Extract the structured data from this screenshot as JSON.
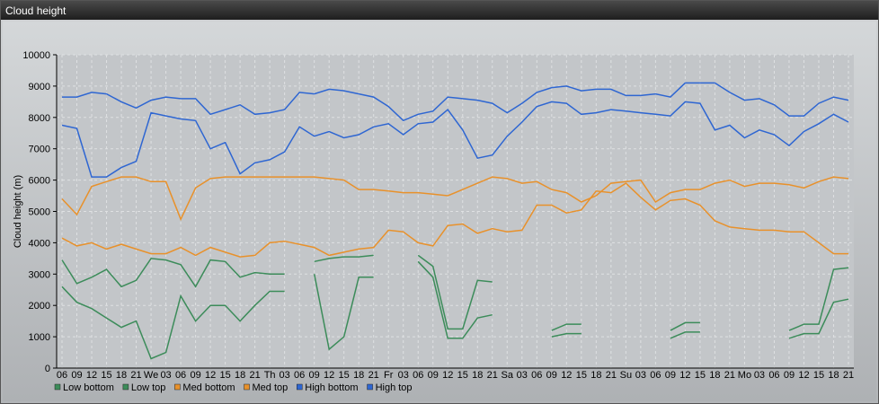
{
  "window": {
    "title": "Cloud height"
  },
  "chart_data": {
    "type": "line",
    "title": "",
    "xlabel": "",
    "ylabel": "Cloud height (m)",
    "ylim": [
      0,
      10000
    ],
    "yticks": [
      0,
      1000,
      2000,
      3000,
      4000,
      5000,
      6000,
      7000,
      8000,
      9000,
      10000
    ],
    "grid": true,
    "legend_position": "bottom",
    "x_tick_labels": [
      "06",
      "09",
      "12",
      "15",
      "18",
      "21",
      "We",
      "03",
      "06",
      "09",
      "12",
      "15",
      "18",
      "21",
      "Th",
      "03",
      "06",
      "09",
      "12",
      "15",
      "18",
      "21",
      "Fr",
      "03",
      "06",
      "09",
      "12",
      "15",
      "18",
      "21",
      "Sa",
      "03",
      "06",
      "09",
      "12",
      "15",
      "18",
      "21",
      "Su",
      "03",
      "06",
      "09",
      "12",
      "15",
      "18",
      "21",
      "Mo",
      "03",
      "06",
      "09",
      "12",
      "15",
      "18",
      "21"
    ],
    "series": [
      {
        "name": "Low bottom",
        "color": "#3c8c5a",
        "values": [
          2600,
          2100,
          1900,
          1600,
          1300,
          1500,
          300,
          500,
          2300,
          1500,
          2000,
          2000,
          1500,
          2000,
          2450,
          2450,
          null,
          3000,
          600,
          1000,
          2900,
          2900,
          null,
          null,
          3400,
          2900,
          950,
          950,
          1600,
          1700,
          null,
          null,
          null,
          1000,
          1100,
          1100,
          null,
          null,
          null,
          null,
          null,
          950,
          1150,
          1150,
          null,
          null,
          null,
          null,
          null,
          950,
          1100,
          1100,
          2100,
          2200
        ]
      },
      {
        "name": "Low top",
        "color": "#3c8c5a",
        "values": [
          3450,
          2700,
          2900,
          3150,
          2600,
          2800,
          3500,
          3450,
          3300,
          2600,
          3450,
          3400,
          2900,
          3050,
          3000,
          3000,
          null,
          3400,
          3500,
          3550,
          3550,
          3600,
          null,
          null,
          3600,
          3250,
          1250,
          1250,
          2800,
          2750,
          null,
          null,
          null,
          1200,
          1400,
          1400,
          null,
          null,
          null,
          null,
          null,
          1200,
          1450,
          1450,
          null,
          null,
          null,
          null,
          null,
          1200,
          1400,
          1400,
          3150,
          3200
        ]
      },
      {
        "name": "Med bottom",
        "color": "#e8912b",
        "values": [
          4150,
          3900,
          4000,
          3800,
          3950,
          3800,
          3650,
          3650,
          3850,
          3600,
          3850,
          3700,
          3550,
          3600,
          4000,
          4050,
          3950,
          3850,
          3600,
          3700,
          3800,
          3850,
          4400,
          4350,
          4000,
          3900,
          4550,
          4600,
          4300,
          4450,
          4350,
          4400,
          5200,
          5200,
          4950,
          5050,
          5650,
          5600,
          5900,
          5450,
          5050,
          5350,
          5400,
          5200,
          4700,
          4500,
          4450,
          4400,
          4400,
          4350,
          4350,
          4000,
          3650,
          3650
        ]
      },
      {
        "name": "Med top",
        "color": "#e8912b",
        "values": [
          5400,
          4900,
          5800,
          5950,
          6100,
          6100,
          5950,
          5950,
          4750,
          5750,
          6050,
          6100,
          6100,
          6100,
          6100,
          6100,
          6100,
          6100,
          6050,
          6000,
          5700,
          5700,
          5650,
          5600,
          5600,
          5550,
          5500,
          5700,
          5900,
          6100,
          6050,
          5900,
          5950,
          5700,
          5600,
          5300,
          5500,
          5900,
          5950,
          6000,
          5300,
          5600,
          5700,
          5700,
          5900,
          6000,
          5800,
          5900,
          5900,
          5850,
          5750,
          5950,
          6100,
          6050
        ]
      },
      {
        "name": "High bottom",
        "color": "#2e66d2",
        "values": [
          7750,
          7650,
          6100,
          6100,
          6400,
          6600,
          8150,
          8050,
          7950,
          7900,
          7000,
          7200,
          6200,
          6550,
          6650,
          6900,
          7700,
          7400,
          7550,
          7350,
          7450,
          7700,
          7800,
          7450,
          7800,
          7850,
          8250,
          7600,
          6700,
          6800,
          7400,
          7850,
          8350,
          8500,
          8450,
          8100,
          8150,
          8250,
          8200,
          8150,
          8100,
          8050,
          8500,
          8450,
          7600,
          7750,
          7350,
          7600,
          7450,
          7100,
          7550,
          7800,
          8100,
          7850
        ]
      },
      {
        "name": "High top",
        "color": "#2e66d2",
        "values": [
          8650,
          8650,
          8800,
          8750,
          8500,
          8300,
          8550,
          8650,
          8600,
          8600,
          8100,
          8250,
          8400,
          8100,
          8150,
          8250,
          8800,
          8750,
          8900,
          8850,
          8750,
          8650,
          8350,
          7900,
          8100,
          8200,
          8650,
          8600,
          8550,
          8450,
          8150,
          8450,
          8800,
          8950,
          9000,
          8850,
          8900,
          8900,
          8700,
          8700,
          8750,
          8650,
          9100,
          9100,
          9100,
          8800,
          8550,
          8600,
          8400,
          8050,
          8050,
          8450,
          8650,
          8550
        ]
      }
    ]
  }
}
